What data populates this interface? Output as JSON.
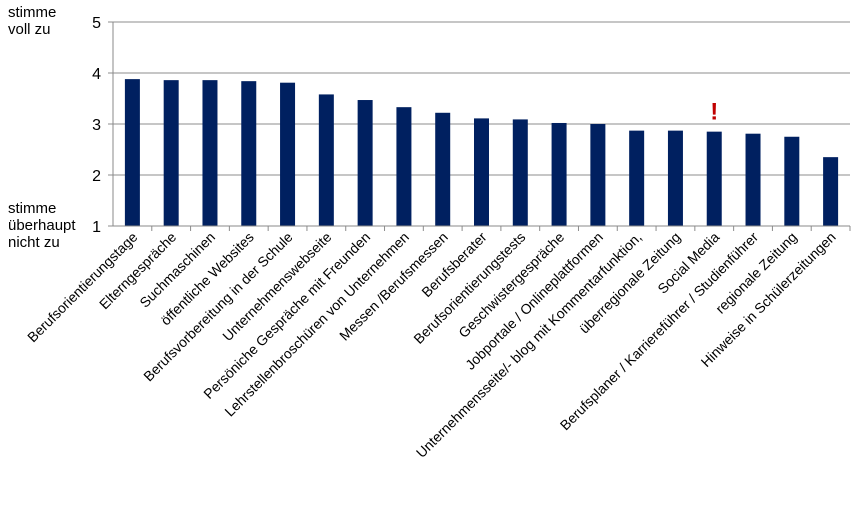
{
  "chart_data": {
    "type": "bar",
    "title": "",
    "xlabel": "",
    "ylabel": "",
    "ylim": [
      1,
      5
    ],
    "yticks": [
      "1",
      "2",
      "3",
      "4",
      "5"
    ],
    "y_top_label": "stimme\nvoll zu",
    "y_bottom_label": "stimme\nüberhaupt\nnicht zu",
    "grid": true,
    "bar_color": "#002060",
    "marker_color": "#c00000",
    "categories": [
      "Berufsorientierungstage",
      "Elterngespräche",
      "Suchmaschinen",
      "öffentliche Websites",
      "Berufsvorbereitung in der Schule",
      "Unternehmenswebseite",
      "Persöniche Gespräche mit Freunden",
      "Lehrstellenbroschüren von Unternehmen",
      "Messen /Berufsmessen",
      "Berufsberater",
      "Berufsorientierungstests",
      "Geschwistergespräche",
      "Jobportale / Onlineplattformen",
      "Unternehmensseite/- blog mit Kommentarfunktion,",
      "überregionale Zeitung",
      "Social Media",
      "Berufsplaner / Karriereführer / Studienführer",
      "regionale Zeitung",
      "Hinweise in Schülerzeitungen"
    ],
    "values": [
      3.88,
      3.86,
      3.86,
      3.84,
      3.81,
      3.58,
      3.47,
      3.33,
      3.22,
      3.11,
      3.09,
      3.02,
      3.0,
      2.87,
      2.87,
      2.85,
      2.81,
      2.75,
      2.35
    ],
    "annotations": [
      {
        "category": "Social Media",
        "text": "!"
      }
    ]
  }
}
